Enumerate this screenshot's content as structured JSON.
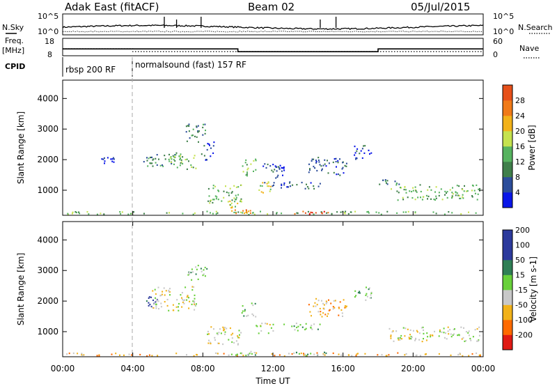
{
  "header": {
    "title": "Adak East (fitACF)",
    "beam": "Beam 02",
    "date": "05/Jul/2015"
  },
  "noise_panel": {
    "left_label": "N.Sky",
    "right_label": "N.Search",
    "left_ticks": [
      "10^5",
      "10^0"
    ],
    "right_ticks": [
      "10^5",
      "10^0"
    ]
  },
  "freq_panel": {
    "label_top": "Freq.",
    "label_unit": "[MHz]",
    "left_ticks": [
      "18",
      "8"
    ],
    "right_label": "Nave",
    "right_ticks": [
      "60",
      "0"
    ],
    "freq_steps": [
      {
        "start": 0.0,
        "end": 10.0,
        "level": 12.0
      },
      {
        "start": 10.0,
        "end": 18.0,
        "level": 10.2
      },
      {
        "start": 18.0,
        "end": 24.0,
        "level": 12.0
      }
    ]
  },
  "cpid_panel": {
    "label": "CPID",
    "segments": [
      {
        "start_hour": 0,
        "text": "rbsp 200 RF"
      },
      {
        "start_hour": 4,
        "text": "normalsound (fast) 157 RF"
      }
    ]
  },
  "x_axis": {
    "label": "Time UT",
    "ticks": [
      "00:00",
      "04:00",
      "08:00",
      "12:00",
      "16:00",
      "20:00",
      "00:00"
    ],
    "tick_hours": [
      0,
      4,
      8,
      12,
      16,
      20,
      24
    ]
  },
  "colors": {
    "power": [
      "#0a16e8",
      "#2c4d9a",
      "#3f7f4a",
      "#56b35f",
      "#c5e24e",
      "#f2b21a",
      "#f07a18",
      "#e6501a",
      "#e01a14"
    ],
    "velocity": [
      "#e01a14",
      "#ff6a00",
      "#f2b21a",
      "#c8c8c8",
      "#68d03a",
      "#2f7f55",
      "#2c3a9c"
    ]
  },
  "chart_data": [
    {
      "type": "heatmap",
      "name": "power",
      "ylabel": "Slant Range [km]",
      "y_ticks": [
        "1000",
        "2000",
        "3000",
        "4000"
      ],
      "y_tick_values": [
        1000,
        2000,
        3000,
        4000
      ],
      "ylim": [
        180,
        4600
      ],
      "xlim": [
        0,
        24
      ],
      "colorbar": {
        "label": "Power [dB]",
        "tick_labels": [
          "4",
          "8",
          "12",
          "16",
          "20",
          "24",
          "28"
        ],
        "range": [
          0,
          32
        ]
      },
      "regions": [
        {
          "t0": 0.2,
          "t1": 24.0,
          "r0": 180,
          "r1": 330,
          "level": 3
        },
        {
          "t0": 2.2,
          "t1": 3.0,
          "r0": 1900,
          "r1": 2100,
          "level": 0
        },
        {
          "t0": 4.6,
          "t1": 5.4,
          "r0": 1800,
          "r1": 2100,
          "level": 2
        },
        {
          "t0": 5.0,
          "t1": 6.4,
          "r0": 1800,
          "r1": 2250,
          "level": 2
        },
        {
          "t0": 6.0,
          "t1": 7.6,
          "r0": 1700,
          "r1": 2250,
          "level": 3
        },
        {
          "t0": 7.0,
          "t1": 8.2,
          "r0": 2600,
          "r1": 3200,
          "level": 2
        },
        {
          "t0": 7.9,
          "t1": 8.6,
          "r0": 2000,
          "r1": 2600,
          "level": 1
        },
        {
          "t0": 8.2,
          "t1": 10.2,
          "r0": 600,
          "r1": 1200,
          "level": 3
        },
        {
          "t0": 9.4,
          "t1": 10.2,
          "r0": 400,
          "r1": 700,
          "level": 4
        },
        {
          "t0": 9.6,
          "t1": 10.8,
          "r0": 230,
          "r1": 380,
          "level": 6
        },
        {
          "t0": 10.2,
          "t1": 11.0,
          "r0": 1500,
          "r1": 2100,
          "level": 3
        },
        {
          "t0": 11.0,
          "t1": 12.0,
          "r0": 900,
          "r1": 1300,
          "level": 4
        },
        {
          "t0": 11.4,
          "t1": 12.6,
          "r0": 1100,
          "r1": 1900,
          "level": 1
        },
        {
          "t0": 12.6,
          "t1": 14.8,
          "r0": 1050,
          "r1": 1300,
          "level": 1
        },
        {
          "t0": 13.2,
          "t1": 15.2,
          "r0": 230,
          "r1": 360,
          "level": 7
        },
        {
          "t0": 14.0,
          "t1": 16.2,
          "r0": 1500,
          "r1": 2100,
          "level": 1
        },
        {
          "t0": 16.6,
          "t1": 17.6,
          "r0": 2000,
          "r1": 2500,
          "level": 1
        },
        {
          "t0": 18.0,
          "t1": 19.2,
          "r0": 1200,
          "r1": 1400,
          "level": 2
        },
        {
          "t0": 18.6,
          "t1": 23.8,
          "r0": 700,
          "r1": 1200,
          "level": 3
        }
      ]
    },
    {
      "type": "heatmap",
      "name": "velocity",
      "ylabel": "Slant Range [km]",
      "y_ticks": [
        "1000",
        "2000",
        "3000",
        "4000"
      ],
      "y_tick_values": [
        1000,
        2000,
        3000,
        4000
      ],
      "ylim": [
        180,
        4600
      ],
      "xlim": [
        0,
        24
      ],
      "colorbar": {
        "label": "Velocity [m s-1]",
        "tick_labels": [
          "-200",
          "-100",
          "-50",
          "-15",
          "15",
          "50",
          "100",
          "200"
        ],
        "range": [
          -250,
          250
        ]
      },
      "regions": [
        {
          "t0": 0.2,
          "t1": 24.0,
          "r0": 180,
          "r1": 330,
          "level": 2
        },
        {
          "t0": 4.6,
          "t1": 5.4,
          "r0": 1800,
          "r1": 2200,
          "level": 6
        },
        {
          "t0": 5.0,
          "t1": 7.6,
          "r0": 1700,
          "r1": 2500,
          "level": 3
        },
        {
          "t0": 7.0,
          "t1": 8.2,
          "r0": 2700,
          "r1": 3200,
          "level": 4
        },
        {
          "t0": 8.2,
          "t1": 10.2,
          "r0": 600,
          "r1": 1200,
          "level": 3
        },
        {
          "t0": 9.6,
          "t1": 11.0,
          "r0": 230,
          "r1": 380,
          "level": 4
        },
        {
          "t0": 10.2,
          "t1": 11.0,
          "r0": 1500,
          "r1": 2000,
          "level": 4
        },
        {
          "t0": 11.0,
          "t1": 12.0,
          "r0": 900,
          "r1": 1300,
          "level": 3
        },
        {
          "t0": 12.6,
          "t1": 14.8,
          "r0": 1050,
          "r1": 1300,
          "level": 4
        },
        {
          "t0": 13.2,
          "t1": 15.2,
          "r0": 230,
          "r1": 360,
          "level": 4
        },
        {
          "t0": 14.0,
          "t1": 16.2,
          "r0": 1500,
          "r1": 2100,
          "level": 2
        },
        {
          "t0": 16.6,
          "t1": 17.6,
          "r0": 2000,
          "r1": 2500,
          "level": 4
        },
        {
          "t0": 18.6,
          "t1": 23.8,
          "r0": 700,
          "r1": 1200,
          "level": 3
        }
      ]
    }
  ]
}
